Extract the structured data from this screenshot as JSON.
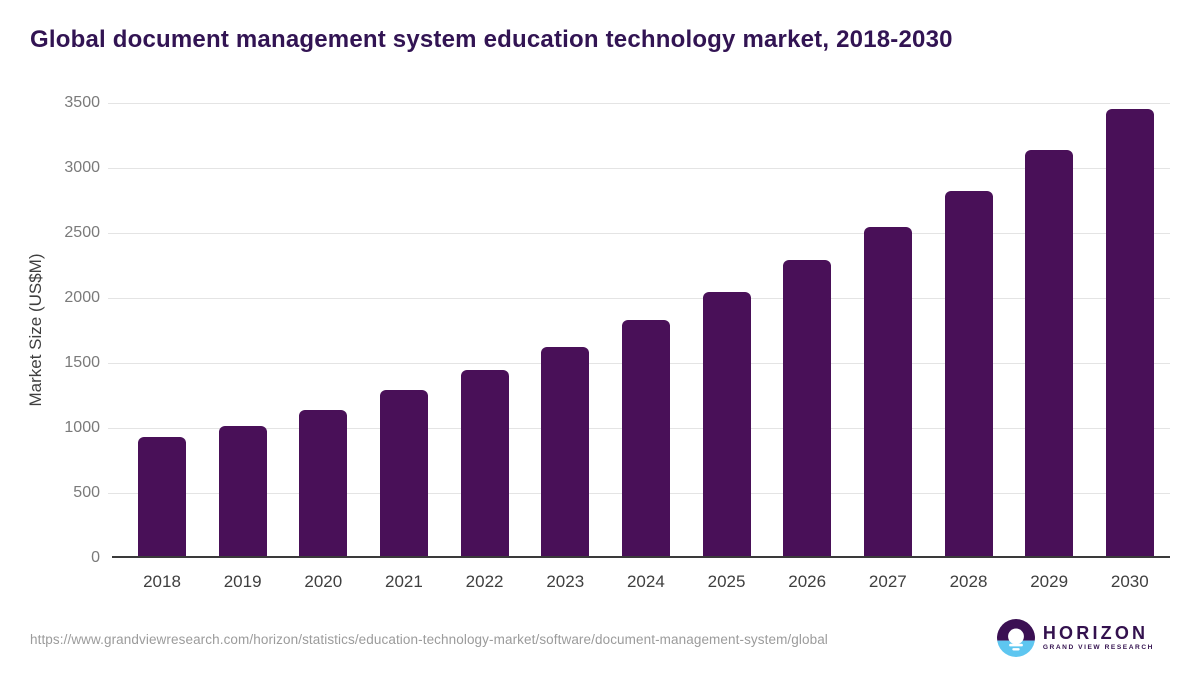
{
  "chart_data": {
    "type": "bar",
    "title": "Global document management system education technology market, 2018-2030",
    "xlabel": "",
    "ylabel": "Market Size (US$M)",
    "categories": [
      "2018",
      "2019",
      "2020",
      "2021",
      "2022",
      "2023",
      "2024",
      "2025",
      "2026",
      "2027",
      "2028",
      "2029",
      "2030"
    ],
    "values": [
      915,
      1000,
      1125,
      1280,
      1430,
      1610,
      1815,
      2030,
      2275,
      2530,
      2810,
      3120,
      3440
    ],
    "ylim": [
      0,
      3500
    ],
    "yticks": [
      0,
      500,
      1000,
      1500,
      2000,
      2500,
      3000,
      3500
    ],
    "grid": true,
    "legend": "none",
    "bar_color": "#491058"
  },
  "colors": {
    "title_text": "#321453",
    "bar_fill": "#491058",
    "axis_line": "#3a3a3a",
    "gridline": "#e4e4e4",
    "y_tick_text": "#7a7a7a",
    "x_tick_text": "#3f3f3f",
    "source_text": "#9b9b9b",
    "logo_purple": "#3b1053",
    "logo_blue": "#5ec6f0"
  },
  "footer": {
    "source_url": "https://www.grandviewresearch.com/horizon/statistics/education-technology-market/software/document-management-system/global",
    "logo": {
      "name": "HORIZON",
      "tagline": "GRAND VIEW RESEARCH"
    }
  }
}
